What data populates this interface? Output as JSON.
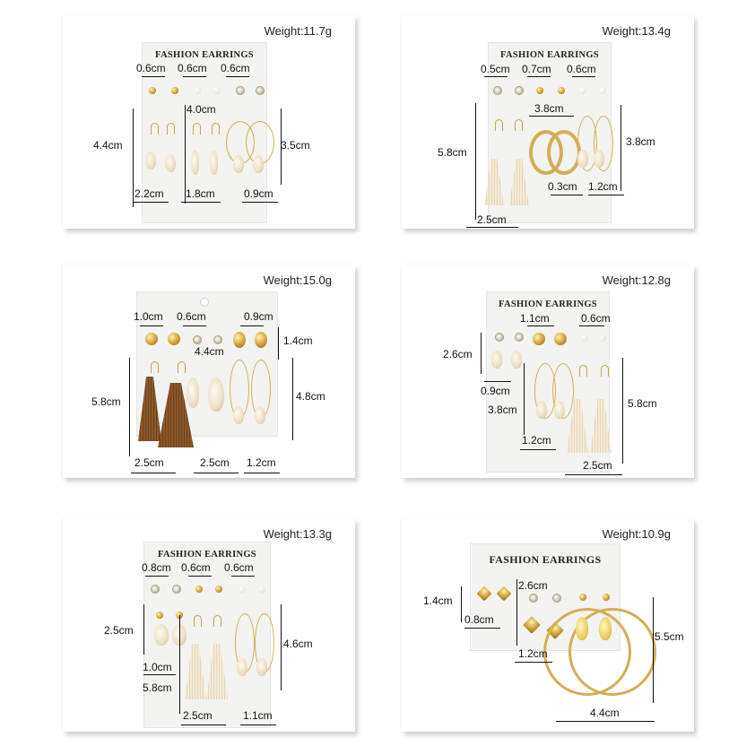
{
  "card_title": "FASHION EARRINGS",
  "panels": [
    {
      "weight": "Weight:11.7g",
      "measures": [
        "0.6cm",
        "0.6cm",
        "0.6cm",
        "4.0cm",
        "4.4cm",
        "3.5cm",
        "2.2cm",
        "1.8cm",
        "0.9cm"
      ]
    },
    {
      "weight": "Weight:13.4g",
      "measures": [
        "0.5cm",
        "0.7cm",
        "0.6cm",
        "3.8cm",
        "5.8cm",
        "3.8cm",
        "0.3cm",
        "1.2cm",
        "2.5cm"
      ]
    },
    {
      "weight": "Weight:15.0g",
      "measures": [
        "1.0cm",
        "0.6cm",
        "0.9cm",
        "1.4cm",
        "4.4cm",
        "5.8cm",
        "4.8cm",
        "2.5cm",
        "2.5cm",
        "1.2cm"
      ]
    },
    {
      "weight": "Weight:12.8g",
      "measures": [
        "1.1cm",
        "0.6cm",
        "2.6cm",
        "0.9cm",
        "3.8cm",
        "5.8cm",
        "1.2cm",
        "2.5cm"
      ]
    },
    {
      "weight": "Weight:13.3g",
      "measures": [
        "0.8cm",
        "0.6cm",
        "0.6cm",
        "2.5cm",
        "4.6cm",
        "1.0cm",
        "5.8cm",
        "2.5cm",
        "1.1cm"
      ]
    },
    {
      "weight": "Weight:10.9g",
      "measures": [
        "2.6cm",
        "1.4cm",
        "0.8cm",
        "5.5cm",
        "1.2cm",
        "4.4cm"
      ]
    }
  ]
}
